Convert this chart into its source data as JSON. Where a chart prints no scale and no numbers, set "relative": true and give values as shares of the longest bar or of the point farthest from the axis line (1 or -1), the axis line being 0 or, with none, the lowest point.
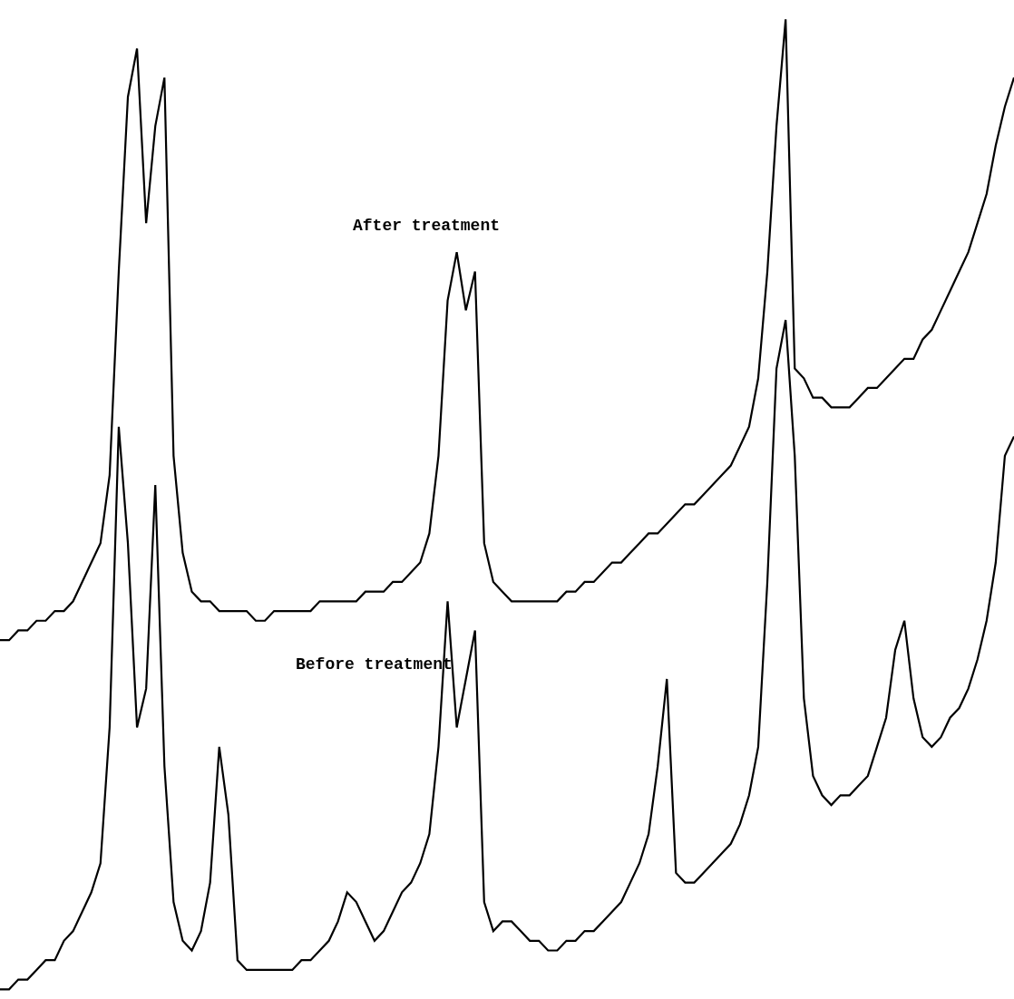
{
  "chart_data": {
    "type": "line",
    "relative": true,
    "tick_labels": false,
    "categories": [
      null,
      null,
      null,
      null,
      null,
      null,
      null,
      null,
      null,
      null,
      null,
      null,
      null,
      null,
      null,
      null,
      null,
      null,
      null,
      null,
      null,
      null,
      null,
      null,
      null,
      null,
      null,
      null,
      null,
      null,
      null,
      null,
      null,
      null,
      null,
      null,
      null,
      null,
      null,
      null,
      null,
      null,
      null,
      null,
      null,
      null,
      null,
      null,
      null,
      null,
      null,
      null,
      null,
      null,
      null,
      null,
      null,
      null,
      null,
      null,
      null,
      null,
      null,
      null,
      null,
      null,
      null,
      null,
      null,
      null,
      null,
      null,
      null,
      null,
      null,
      null,
      null,
      null,
      null,
      null,
      null,
      null,
      null,
      null,
      null,
      null,
      null,
      null,
      null,
      null,
      null,
      null,
      null,
      null,
      null,
      null,
      null,
      null,
      null,
      null,
      null,
      null,
      null,
      null,
      null,
      null,
      null,
      null,
      null,
      null,
      null,
      null
    ],
    "series": [
      {
        "name": "After treatment",
        "color": "#000000",
        "values": [
          0.36,
          0.36,
          0.37,
          0.37,
          0.38,
          0.38,
          0.39,
          0.39,
          0.4,
          0.42,
          0.44,
          0.46,
          0.53,
          0.74,
          0.92,
          0.97,
          0.79,
          0.89,
          0.94,
          0.55,
          0.45,
          0.41,
          0.4,
          0.4,
          0.39,
          0.39,
          0.39,
          0.39,
          0.38,
          0.38,
          0.39,
          0.39,
          0.39,
          0.39,
          0.39,
          0.4,
          0.4,
          0.4,
          0.4,
          0.4,
          0.41,
          0.41,
          0.41,
          0.42,
          0.42,
          0.43,
          0.44,
          0.47,
          0.55,
          0.71,
          0.76,
          0.7,
          0.74,
          0.46,
          0.42,
          0.41,
          0.4,
          0.4,
          0.4,
          0.4,
          0.4,
          0.4,
          0.41,
          0.41,
          0.42,
          0.42,
          0.43,
          0.44,
          0.44,
          0.45,
          0.46,
          0.47,
          0.47,
          0.48,
          0.49,
          0.5,
          0.5,
          0.51,
          0.52,
          0.53,
          0.54,
          0.56,
          0.58,
          0.63,
          0.74,
          0.89,
          1.0,
          0.64,
          0.63,
          0.61,
          0.61,
          0.6,
          0.6,
          0.6,
          0.61,
          0.62,
          0.62,
          0.63,
          0.64,
          0.65,
          0.65,
          0.67,
          0.68,
          0.7,
          0.72,
          0.74,
          0.76,
          0.79,
          0.82,
          0.87,
          0.91,
          0.94
        ]
      },
      {
        "name": "Before treatment",
        "color": "#000000",
        "values": [
          0,
          0,
          0.01,
          0.01,
          0.02,
          0.03,
          0.03,
          0.05,
          0.06,
          0.08,
          0.1,
          0.13,
          0.27,
          0.58,
          0.46,
          0.27,
          0.31,
          0.52,
          0.23,
          0.09,
          0.05,
          0.04,
          0.06,
          0.11,
          0.25,
          0.18,
          0.03,
          0.02,
          0.02,
          0.02,
          0.02,
          0.02,
          0.02,
          0.03,
          0.03,
          0.04,
          0.05,
          0.07,
          0.1,
          0.09,
          0.07,
          0.05,
          0.06,
          0.08,
          0.1,
          0.11,
          0.13,
          0.16,
          0.25,
          0.4,
          0.27,
          0.32,
          0.37,
          0.09,
          0.06,
          0.07,
          0.07,
          0.06,
          0.05,
          0.05,
          0.04,
          0.04,
          0.05,
          0.05,
          0.06,
          0.06,
          0.07,
          0.08,
          0.09,
          0.11,
          0.13,
          0.16,
          0.23,
          0.32,
          0.12,
          0.11,
          0.11,
          0.12,
          0.13,
          0.14,
          0.15,
          0.17,
          0.2,
          0.25,
          0.42,
          0.64,
          0.69,
          0.55,
          0.3,
          0.22,
          0.2,
          0.19,
          0.2,
          0.2,
          0.21,
          0.22,
          0.25,
          0.28,
          0.35,
          0.38,
          0.3,
          0.26,
          0.25,
          0.26,
          0.28,
          0.29,
          0.31,
          0.34,
          0.38,
          0.44,
          0.55,
          0.57
        ]
      }
    ]
  }
}
